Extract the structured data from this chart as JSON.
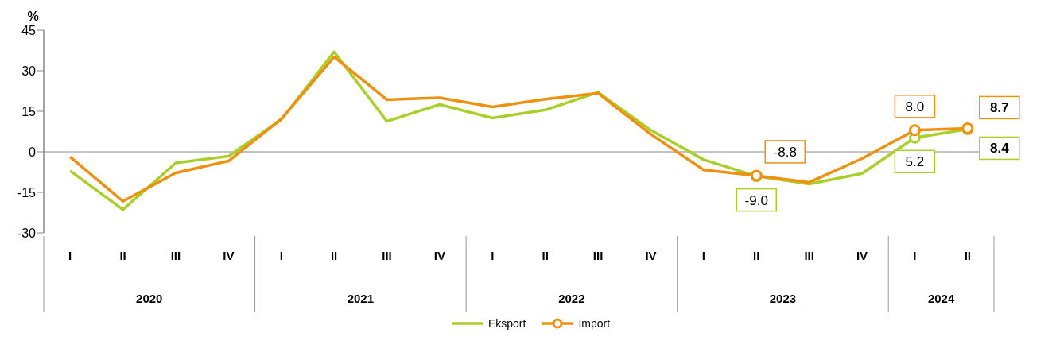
{
  "chart_data": {
    "type": "line",
    "ylabel": "%",
    "categories": [
      "I",
      "II",
      "III",
      "IV",
      "I",
      "II",
      "III",
      "IV",
      "I",
      "II",
      "III",
      "IV",
      "I",
      "II",
      "III",
      "IV",
      "I",
      "II"
    ],
    "annotations": [
      "2020",
      "2021",
      "2022",
      "2023",
      "2024"
    ],
    "series": [
      {
        "name": "Eksport",
        "color": "#a8cf2a",
        "values": [
          -7.0,
          -21.4,
          -4.1,
          -1.6,
          11.9,
          37.0,
          11.3,
          17.5,
          12.5,
          15.5,
          22.0,
          8.0,
          -2.9,
          -9.0,
          -11.9,
          -8.0,
          5.2,
          8.4
        ],
        "value_labels": [
          null,
          null,
          null,
          null,
          null,
          null,
          null,
          null,
          null,
          null,
          null,
          null,
          null,
          "-9.0",
          null,
          null,
          "5.2",
          "8.4"
        ]
      },
      {
        "name": "Import",
        "color": "#f0900f",
        "values": [
          -1.9,
          -18.3,
          -7.8,
          -3.4,
          12.2,
          35.1,
          19.3,
          20.0,
          16.6,
          19.5,
          21.7,
          6.5,
          -6.7,
          -8.8,
          -11.3,
          -2.5,
          8.0,
          8.7
        ],
        "value_labels": [
          null,
          null,
          null,
          null,
          null,
          null,
          null,
          null,
          null,
          null,
          null,
          null,
          null,
          "-8.8",
          null,
          null,
          "8.0",
          "8.7"
        ]
      }
    ],
    "ylim": [
      -30,
      45
    ],
    "yticks": [
      -30,
      -15,
      0,
      15,
      30,
      45
    ],
    "legend": "bottom",
    "line_style": "solid"
  }
}
